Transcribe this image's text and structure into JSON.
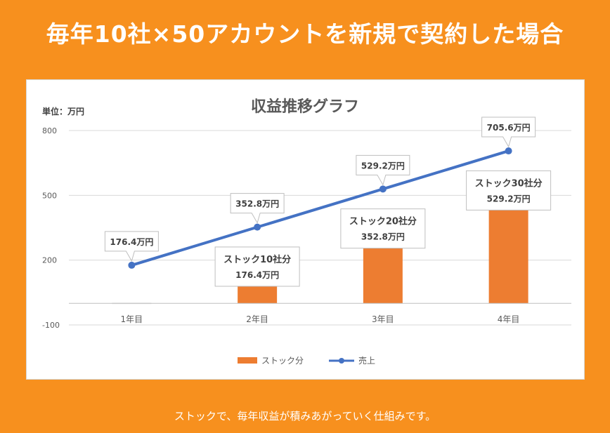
{
  "page": {
    "headline": "毎年10社×50アカウントを新規で契約した場合",
    "caption": "ストックで、毎年収益が積みあがっていく仕組みです。"
  },
  "colors": {
    "background": "#F7901E",
    "bar": "#ED7D31",
    "line": "#4472C4"
  },
  "chart_data": {
    "type": "bar",
    "title": "収益推移グラフ",
    "unit_label": "単位：万円",
    "categories": [
      "1年目",
      "2年目",
      "3年目",
      "4年目"
    ],
    "ylim": [
      -100,
      800
    ],
    "yticks": [
      {
        "value": 800,
        "label": "800"
      },
      {
        "value": 500,
        "label": "500"
      },
      {
        "value": 200,
        "label": "200"
      },
      {
        "value": -100,
        "label": "-100"
      }
    ],
    "grid": true,
    "legend_position": "bottom",
    "series": [
      {
        "name": "ストック分",
        "type": "bar",
        "values": [
          0,
          176.4,
          352.8,
          529.2
        ],
        "labels": [
          null,
          [
            "ストック10社分",
            "176.4万円"
          ],
          [
            "ストック20社分",
            "352.8万円"
          ],
          [
            "ストック30社分",
            "529.2万円"
          ]
        ]
      },
      {
        "name": "売上",
        "type": "line",
        "values": [
          176.4,
          352.8,
          529.2,
          705.6
        ],
        "labels": [
          "176.4万円",
          "352.8万円",
          "529.2万円",
          "705.6万円"
        ]
      }
    ]
  }
}
